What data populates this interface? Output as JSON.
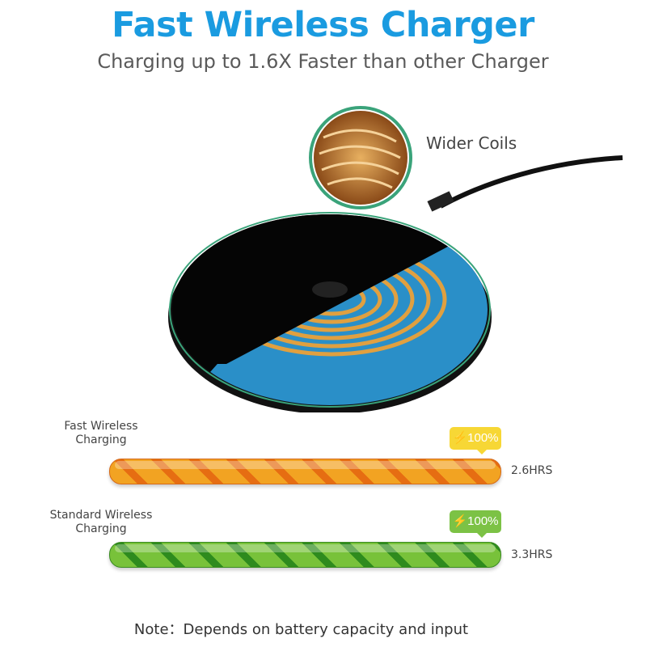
{
  "header": {
    "title": "Fast Wireless Charger",
    "subtitle": "Charging up to 1.6X Faster than other Charger"
  },
  "product": {
    "coil_callout": "Wider Coils"
  },
  "comparison": [
    {
      "label_line1": "Fast Wireless",
      "label_line2": "Charging",
      "badge": "100%",
      "duration": "2.6HRS",
      "color": "#f2a322"
    },
    {
      "label_line1": "Standard Wireless",
      "label_line2": "Charging",
      "badge": "100%",
      "duration": "3.3HRS",
      "color": "#78c23a"
    }
  ],
  "footer": {
    "note": "Note：Depends on battery capacity and input"
  }
}
